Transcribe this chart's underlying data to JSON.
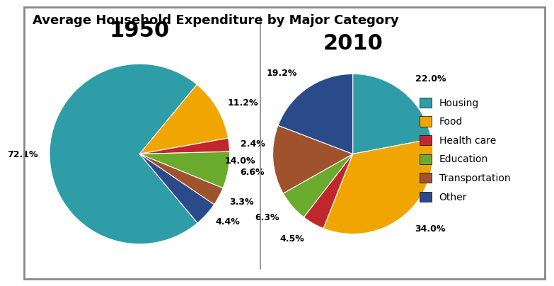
{
  "title": "Average Household Expenditure by Major Category",
  "title_fontsize": 13,
  "year1": "1950",
  "year2": "2010",
  "year_fontsize": 22,
  "categories": [
    "Housing",
    "Food",
    "Health care",
    "Education",
    "Transportation",
    "Other"
  ],
  "colors": [
    "#2E9DA8",
    "#F0A500",
    "#C0272D",
    "#6AAB2E",
    "#A0522D",
    "#2B4A8A"
  ],
  "values_1950": [
    72.1,
    11.2,
    2.4,
    6.6,
    3.3,
    4.4
  ],
  "values_2010": [
    22.0,
    34.0,
    4.5,
    6.3,
    14.0,
    19.2
  ],
  "labels_1950": [
    "72.1%",
    "11.2%",
    "2.4%",
    "6.6%",
    "3.3%",
    "4.4%"
  ],
  "labels_2010": [
    "22.0%",
    "34.0%",
    "4.5%",
    "6.3%",
    "14.0%",
    "19.2%"
  ],
  "startangle_1950": -50,
  "startangle_2010": 90,
  "bg_color": "#FFFFFF",
  "label_fontsize": 9,
  "legend_fontsize": 10
}
